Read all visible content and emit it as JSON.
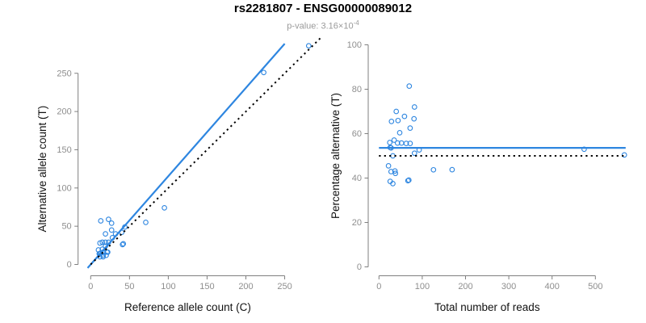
{
  "header": {
    "title": "rs2281807 - ENSG00000089012",
    "subtitle_prefix": "p-value: 3.16×10",
    "subtitle_exponent": "-4"
  },
  "colors": {
    "accent_blue": "#2E86E0",
    "dotted_black": "#000000",
    "axis_gray": "#7f7f7f",
    "tick_label_gray": "#8e8e8e",
    "subtitle_gray": "#9a9a9a"
  },
  "chart_data": [
    {
      "id": "allele-counts",
      "type": "scatter",
      "xlabel": "Reference allele count (C)",
      "ylabel": "Alternative allele count (T)",
      "xlim": [
        0,
        250
      ],
      "ylim": [
        0,
        250
      ],
      "xticks": [
        0,
        50,
        100,
        150,
        200,
        250
      ],
      "yticks": [
        0,
        50,
        100,
        150,
        200,
        250
      ],
      "grid": false,
      "legend": "none",
      "points": [
        [
          13,
          57
        ],
        [
          23,
          59
        ],
        [
          12,
          28
        ],
        [
          15,
          29
        ],
        [
          19,
          40
        ],
        [
          10,
          19
        ],
        [
          27,
          54
        ],
        [
          27,
          45
        ],
        [
          19,
          29
        ],
        [
          11,
          14
        ],
        [
          15,
          20
        ],
        [
          19,
          24
        ],
        [
          23,
          29
        ],
        [
          28,
          35
        ],
        [
          32,
          40
        ],
        [
          12,
          14
        ],
        [
          40,
          42
        ],
        [
          44,
          49
        ],
        [
          13,
          15
        ],
        [
          16,
          16
        ],
        [
          12,
          10
        ],
        [
          16,
          12
        ],
        [
          21,
          16
        ],
        [
          22,
          16
        ],
        [
          71,
          55
        ],
        [
          95,
          74
        ],
        [
          16,
          10
        ],
        [
          20,
          12
        ],
        [
          41,
          26
        ],
        [
          42,
          27
        ],
        [
          223,
          251
        ],
        [
          281,
          286
        ]
      ],
      "lines": [
        {
          "name": "fitted",
          "type": "abline",
          "slope": 1.155,
          "intercept": 0,
          "x_range": [
            -4,
            250
          ],
          "style": "solid",
          "color": "#2E86E0"
        },
        {
          "name": "identity",
          "type": "abline",
          "slope": 1,
          "intercept": 0,
          "x_range": [
            0,
            296
          ],
          "style": "dotted",
          "color": "#000000"
        }
      ]
    },
    {
      "id": "percentage-alt",
      "type": "scatter",
      "xlabel": "Total number of reads",
      "ylabel": "Percentage alternative (T)",
      "xlim": [
        0,
        500
      ],
      "ylim": [
        0,
        100
      ],
      "xticks": [
        0,
        100,
        200,
        300,
        400,
        500
      ],
      "yticks": [
        0,
        20,
        40,
        60,
        80,
        100
      ],
      "grid": false,
      "legend": "none",
      "points": [
        [
          70,
          81.4
        ],
        [
          82,
          72.0
        ],
        [
          40,
          70.0
        ],
        [
          44,
          65.9
        ],
        [
          59,
          67.8
        ],
        [
          29,
          65.5
        ],
        [
          81,
          66.7
        ],
        [
          72,
          62.5
        ],
        [
          48,
          60.4
        ],
        [
          25,
          56.0
        ],
        [
          35,
          57.1
        ],
        [
          43,
          55.8
        ],
        [
          52,
          55.8
        ],
        [
          63,
          55.6
        ],
        [
          72,
          55.6
        ],
        [
          26,
          53.8
        ],
        [
          82,
          51.2
        ],
        [
          93,
          52.7
        ],
        [
          28,
          53.6
        ],
        [
          32,
          50.0
        ],
        [
          22,
          45.5
        ],
        [
          28,
          42.9
        ],
        [
          37,
          43.2
        ],
        [
          38,
          42.1
        ],
        [
          126,
          43.7
        ],
        [
          169,
          43.8
        ],
        [
          26,
          38.5
        ],
        [
          32,
          37.5
        ],
        [
          67,
          38.8
        ],
        [
          69,
          39.1
        ],
        [
          474,
          53.0
        ],
        [
          567,
          50.4
        ]
      ],
      "lines": [
        {
          "name": "fitted-percentage",
          "type": "hline",
          "y": 53.6,
          "x_range": [
            0,
            570
          ],
          "style": "solid",
          "color": "#2E86E0"
        },
        {
          "name": "null-fifty-percent",
          "type": "hline",
          "y": 50,
          "x_range": [
            0,
            570
          ],
          "style": "dotted",
          "color": "#000000"
        }
      ]
    }
  ]
}
